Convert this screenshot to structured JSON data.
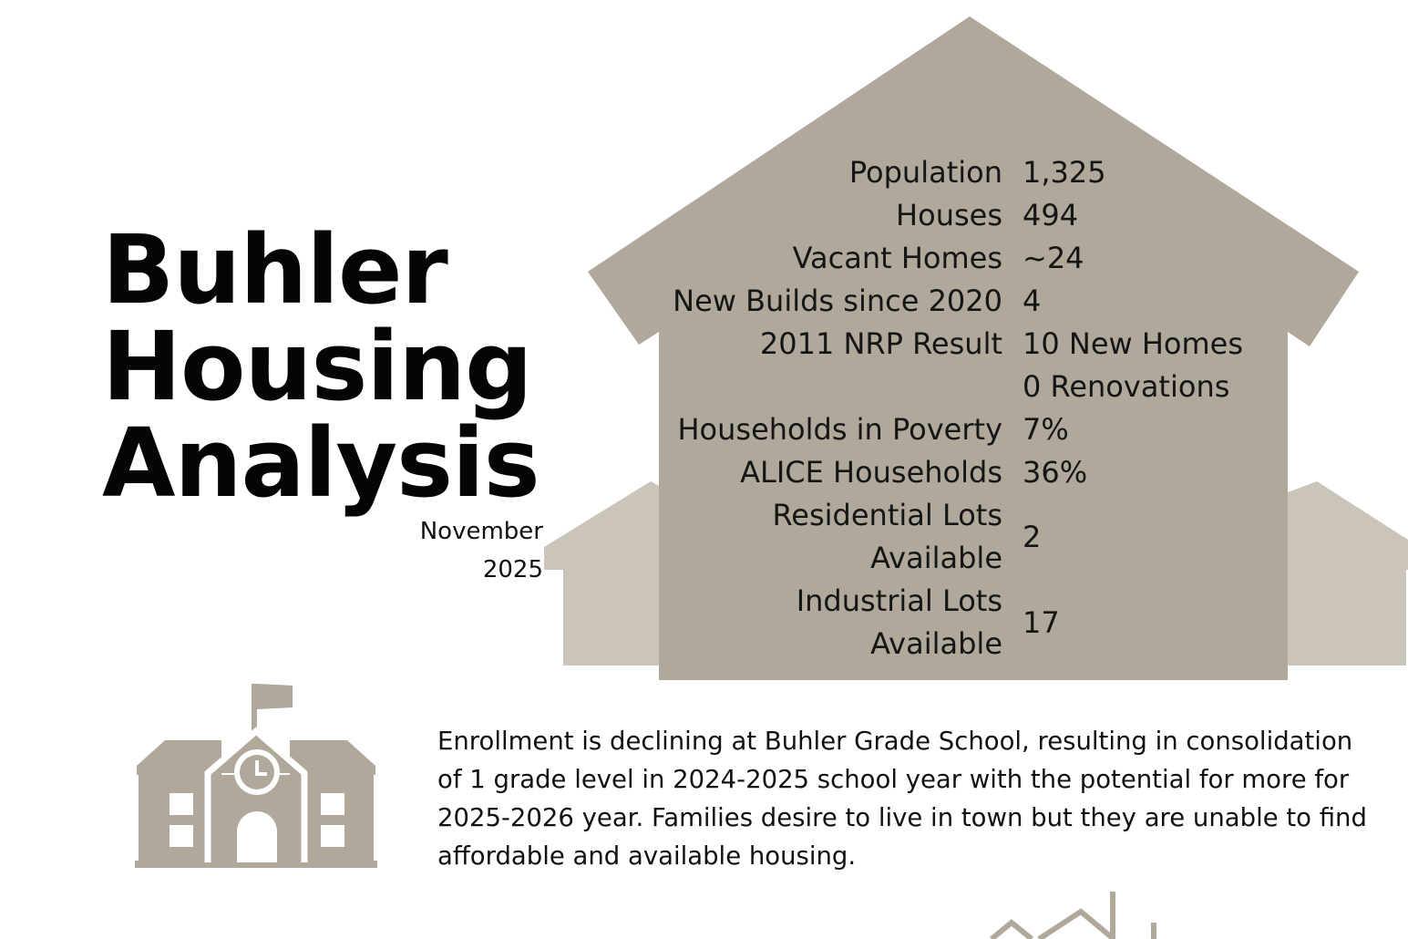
{
  "title": {
    "line1": "Buhler",
    "line2": "Housing",
    "line3": "Analysis"
  },
  "date": {
    "month": "November",
    "year": "2025"
  },
  "stats": [
    {
      "label": "Population",
      "value": "1,325"
    },
    {
      "label": "Houses",
      "value": "494"
    },
    {
      "label": "Vacant Homes",
      "value": "~24"
    },
    {
      "label": "New Builds since 2020",
      "value": "4"
    },
    {
      "label": "2011 NRP Result",
      "value": "10 New Homes"
    },
    {
      "label": "",
      "value": "0 Renovations"
    },
    {
      "label": "Households in Poverty",
      "value": "7%"
    },
    {
      "label": "ALICE Households",
      "value": "36%"
    },
    {
      "label": "Residential Lots Available",
      "label_line1": "Residential Lots",
      "label_line2": "Available",
      "value": "2"
    },
    {
      "label": "Industrial Lots Available",
      "label_line1": "Industrial Lots",
      "label_line2": "Available",
      "value": "17"
    }
  ],
  "school": {
    "icon": "school-icon",
    "text": "Enrollment is declining at Buhler Grade School, resulting in consolidation of 1 grade level in 2024-2025 school year with the potential for more for 2025-2026 year. Families desire to live in town but they are unable to find affordable and available housing."
  },
  "colors": {
    "house_main": "#b0a89b",
    "house_light": "#cbc4bb",
    "icon": "#b0a89b"
  }
}
